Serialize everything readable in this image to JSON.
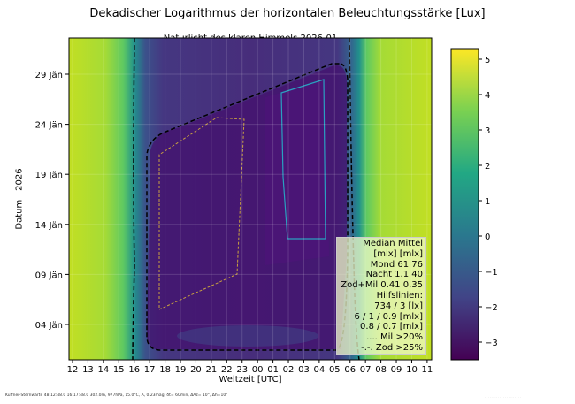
{
  "chart_data": {
    "type": "heatmap",
    "title": "Dekadischer Logarithmus der horizontalen Beleuchtungsstärke [Lux]",
    "subtitle": "Naturlicht des klaren Himmels 2026-01",
    "xlabel": "Weltzeit [UTC]",
    "ylabel": "Datum - 2026",
    "x_ticks": [
      "12",
      "13",
      "14",
      "15",
      "16",
      "17",
      "18",
      "19",
      "20",
      "21",
      "22",
      "23",
      "00",
      "01",
      "02",
      "03",
      "04",
      "05",
      "06",
      "07",
      "08",
      "09",
      "10",
      "11"
    ],
    "y_ticks": [
      "29 Jän",
      "24 Jän",
      "19 Jän",
      "14 Jän",
      "09 Jän",
      "04 Jän"
    ],
    "colorbar": {
      "ticks": [
        5,
        4,
        3,
        2,
        1,
        0,
        -1,
        -2,
        -3
      ],
      "range": [
        -3.5,
        5.3
      ],
      "colormap": "viridis"
    },
    "legend": {
      "position": "lower-right",
      "lines": [
        "Median Mittel",
        "[mlx]  [mlx]",
        "Mond   61  76",
        "Nacht 1.1  40",
        "Zod+Mil 0.41  0.35",
        "Hilfslinien:",
        "734 / 3  [lx]",
        "6 / 1 / 0.9 [mlx]",
        "0.8 / 0.7 [mlx]",
        ".... Mil >20%",
        "-.-. Zod >25%"
      ]
    }
  },
  "footer": "Kuffner-Sternwarte 48:12:48.0 16:17:48.0 302.0m,  977hPa, 15.0°C, A, 0.23mag, δt= 60min, ΔAz= 10°, Δh=10°"
}
